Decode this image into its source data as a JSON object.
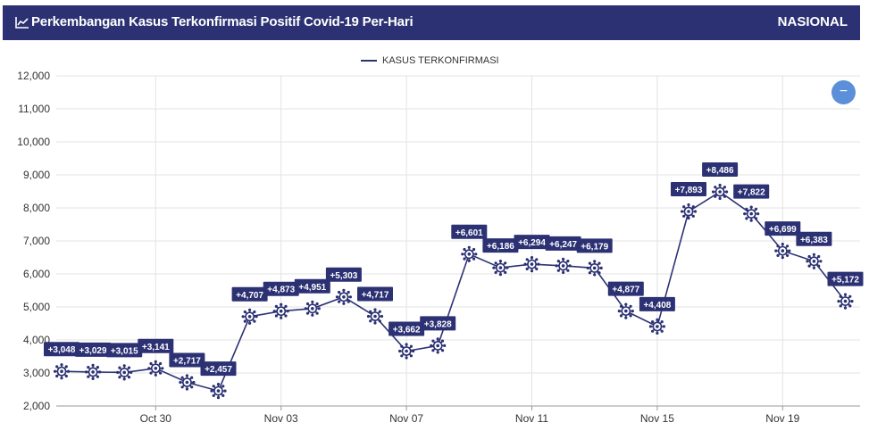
{
  "header": {
    "title": "Perkembangan Kasus Terkonfirmasi Positif Covid-19 Per-Hari",
    "region": "NASIONAL"
  },
  "zoom_button": {
    "label": "−"
  },
  "colors": {
    "header_bg": "#2b3173",
    "line": "#2b3173",
    "label_bg": "#2b3173",
    "button": "#5b8fd9"
  },
  "chart_data": {
    "type": "line",
    "title": "Perkembangan Kasus Terkonfirmasi Positif Covid-19 Per-Hari",
    "ylim": [
      2000,
      12000
    ],
    "y_ticks": [
      "2,000",
      "3,000",
      "4,000",
      "5,000",
      "6,000",
      "7,000",
      "8,000",
      "9,000",
      "10,000",
      "11,000",
      "12,000"
    ],
    "x_ticks": [
      "Oct 30",
      "Nov 03",
      "Nov 07",
      "Nov 11",
      "Nov 15",
      "Nov 19"
    ],
    "legend_position": "top-center",
    "grid": true,
    "series": [
      {
        "name": "KASUS TERKONFIRMASI",
        "dates": [
          "Oct 27",
          "Oct 28",
          "Oct 29",
          "Oct 30",
          "Oct 31",
          "Nov 01",
          "Nov 02",
          "Nov 03",
          "Nov 04",
          "Nov 05",
          "Nov 06",
          "Nov 07",
          "Nov 08",
          "Nov 09",
          "Nov 10",
          "Nov 11",
          "Nov 12",
          "Nov 13",
          "Nov 14",
          "Nov 15",
          "Nov 16",
          "Nov 17",
          "Nov 18",
          "Nov 19",
          "Nov 20",
          "Nov 21"
        ],
        "values": [
          3048,
          3029,
          3015,
          3141,
          2717,
          2457,
          4707,
          4873,
          4951,
          5303,
          4717,
          3662,
          3828,
          6601,
          6186,
          6294,
          6247,
          6179,
          4877,
          4408,
          7893,
          8486,
          7822,
          6699,
          6383,
          5172
        ],
        "labels": [
          "+3,048",
          "+3,029",
          "+3,015",
          "+3,141",
          "+2,717",
          "+2,457",
          "+4,707",
          "+4,873",
          "+4,951",
          "+5,303",
          "+4,717",
          "+3,662",
          "+3,828",
          "+6,601",
          "+6,186",
          "+6,294",
          "+6,247",
          "+6,179",
          "+4,877",
          "+4,408",
          "+7,893",
          "+8,486",
          "+7,822",
          "+6,699",
          "+6,383",
          "+5,172"
        ]
      }
    ]
  }
}
